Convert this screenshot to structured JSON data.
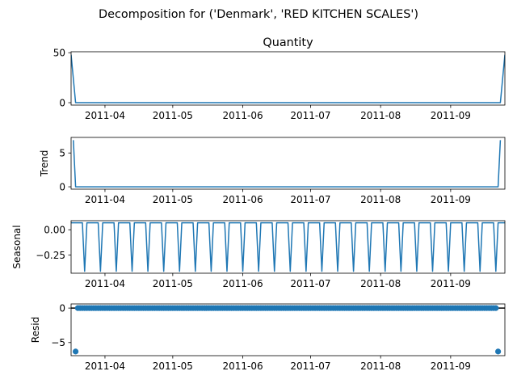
{
  "figure": {
    "title": "Decomposition for ('Denmark', 'RED KITCHEN SCALES')"
  },
  "chart_data": {
    "type": "line",
    "title": "Decomposition for ('Denmark', 'RED KITCHEN SCALES')",
    "x_range": [
      "2011-03-17",
      "2011-09-25"
    ],
    "x_ticks": [
      "2011-04",
      "2011-05",
      "2011-06",
      "2011-07",
      "2011-08",
      "2011-09"
    ],
    "series_color": "#1f77b4",
    "panels": [
      {
        "key": "observed",
        "title": "Quantity",
        "ylabel": "",
        "type": "line",
        "ylim": [
          -2.4,
          51
        ],
        "yticks": [
          0,
          50
        ],
        "ytick_labels": [
          "0",
          "50"
        ],
        "x": [
          "2011-03-17",
          "2011-03-19",
          "2011-09-23",
          "2011-09-25"
        ],
        "values": [
          48,
          0,
          0,
          48
        ]
      },
      {
        "key": "trend",
        "title": "",
        "ylabel": "Trend",
        "type": "line",
        "ylim": [
          -0.35,
          7.3
        ],
        "yticks": [
          0,
          5
        ],
        "ytick_labels": [
          "0",
          "5"
        ],
        "x": [
          "2011-03-18",
          "2011-03-19",
          "2011-09-22",
          "2011-09-23"
        ],
        "values": [
          6.9,
          0,
          0,
          6.9
        ]
      },
      {
        "key": "seasonal",
        "title": "",
        "ylabel": "Seasonal",
        "type": "line",
        "ylim": [
          -0.43,
          0.09
        ],
        "yticks": [
          0.0,
          -0.25
        ],
        "ytick_labels": [
          "0.00",
          "−0.25"
        ],
        "period_days": 7,
        "pattern": [
          0.069,
          0.069,
          0.069,
          0.069,
          0.069,
          0.069,
          -0.411
        ]
      },
      {
        "key": "resid",
        "title": "",
        "ylabel": "Resid",
        "type": "scatter",
        "ylim": [
          -6.9,
          0.6
        ],
        "yticks": [
          0,
          -5
        ],
        "ytick_labels": [
          "0",
          "−5"
        ],
        "zero_line": true,
        "first_last": -6.3,
        "others": 0.0
      }
    ]
  }
}
